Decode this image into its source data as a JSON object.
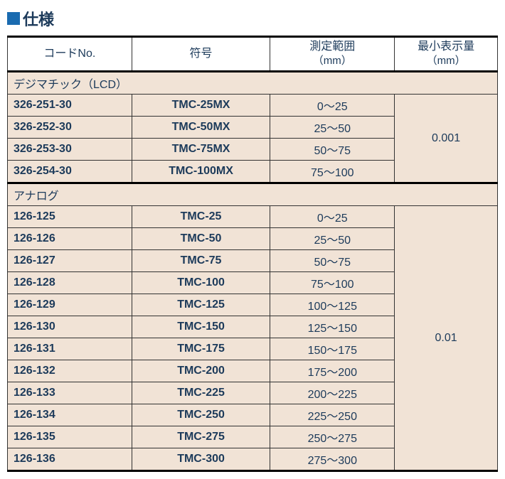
{
  "title": "仕様",
  "headers": {
    "code": "コードNo.",
    "model": "符号",
    "range_label": "測定範囲",
    "range_unit": "（mm）",
    "resolution_label": "最小表示量",
    "resolution_unit": "（mm）"
  },
  "sections": [
    {
      "label": "デジマチック（LCD）",
      "resolution": "0.001",
      "rows": [
        {
          "code": "326-251-30",
          "model": "TMC-25MX",
          "range": "0～25"
        },
        {
          "code": "326-252-30",
          "model": "TMC-50MX",
          "range": "25～50"
        },
        {
          "code": "326-253-30",
          "model": "TMC-75MX",
          "range": "50～75"
        },
        {
          "code": "326-254-30",
          "model": "TMC-100MX",
          "range": "75～100"
        }
      ]
    },
    {
      "label": "アナログ",
      "resolution": "0.01",
      "rows": [
        {
          "code": "126-125",
          "model": "TMC-25",
          "range": "0～25"
        },
        {
          "code": "126-126",
          "model": "TMC-50",
          "range": "25～50"
        },
        {
          "code": "126-127",
          "model": "TMC-75",
          "range": "50～75"
        },
        {
          "code": "126-128",
          "model": "TMC-100",
          "range": "75～100"
        },
        {
          "code": "126-129",
          "model": "TMC-125",
          "range": "100～125"
        },
        {
          "code": "126-130",
          "model": "TMC-150",
          "range": "125～150"
        },
        {
          "code": "126-131",
          "model": "TMC-175",
          "range": "150～175"
        },
        {
          "code": "126-132",
          "model": "TMC-200",
          "range": "175～200"
        },
        {
          "code": "126-133",
          "model": "TMC-225",
          "range": "200～225"
        },
        {
          "code": "126-134",
          "model": "TMC-250",
          "range": "225～250"
        },
        {
          "code": "126-135",
          "model": "TMC-275",
          "range": "250～275"
        },
        {
          "code": "126-136",
          "model": "TMC-300",
          "range": "275～300"
        }
      ]
    }
  ],
  "colors": {
    "square": "#1a6bb0",
    "text": "#1c3a5a",
    "row_bg": "#f1e3d6",
    "border": "#333333"
  }
}
